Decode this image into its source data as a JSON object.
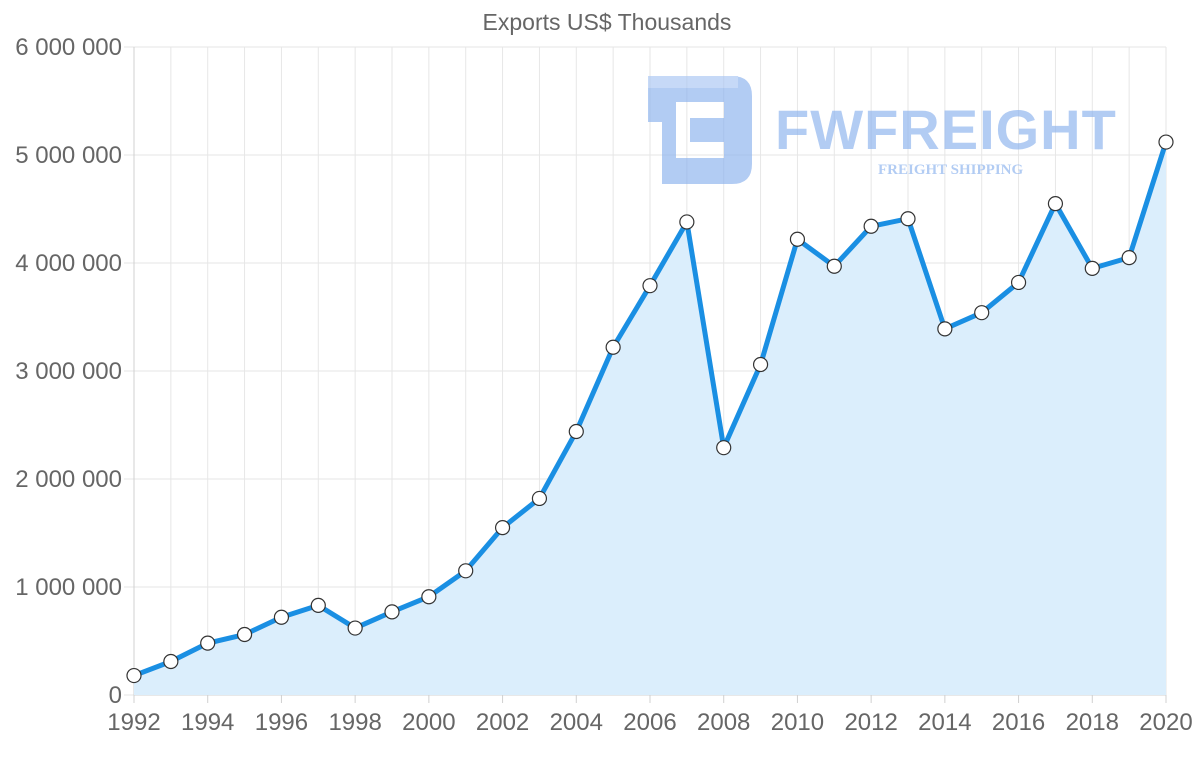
{
  "watermark": {
    "name": "FWFREIGHT",
    "tagline": "FREIGHT SHIPPING",
    "color": "#8ab1ee"
  },
  "chart_data": {
    "type": "area",
    "title": "Exports US$ Thousands",
    "xlabel": "",
    "ylabel": "",
    "x": [
      1992,
      1993,
      1994,
      1995,
      1996,
      1997,
      1998,
      1999,
      2000,
      2001,
      2002,
      2003,
      2004,
      2005,
      2006,
      2007,
      2008,
      2009,
      2010,
      2011,
      2012,
      2013,
      2014,
      2015,
      2016,
      2017,
      2018,
      2019,
      2020
    ],
    "series": [
      {
        "name": "Exports US$ Thousands",
        "values": [
          180000,
          310000,
          480000,
          560000,
          720000,
          830000,
          620000,
          770000,
          910000,
          1150000,
          1550000,
          1820000,
          2440000,
          3220000,
          3790000,
          4380000,
          2290000,
          3060000,
          4220000,
          3970000,
          4340000,
          4410000,
          3390000,
          3540000,
          3820000,
          4550000,
          3950000,
          4050000,
          5120000
        ],
        "line_color": "#1a8fe3",
        "fill_color": "#dbeefc",
        "marker_fill": "#ffffff",
        "marker_stroke": "#333333"
      }
    ],
    "xlim": [
      1992,
      2020
    ],
    "ylim": [
      0,
      6000000
    ],
    "x_ticks": [
      "1992",
      "1994",
      "1996",
      "1998",
      "2000",
      "2002",
      "2004",
      "2006",
      "2008",
      "2010",
      "2012",
      "2014",
      "2016",
      "2018",
      "2020"
    ],
    "y_ticks": [
      "0",
      "1 000 000",
      "2 000 000",
      "3 000 000",
      "4 000 000",
      "5 000 000",
      "6 000 000"
    ],
    "grid": true,
    "legend": "none"
  }
}
